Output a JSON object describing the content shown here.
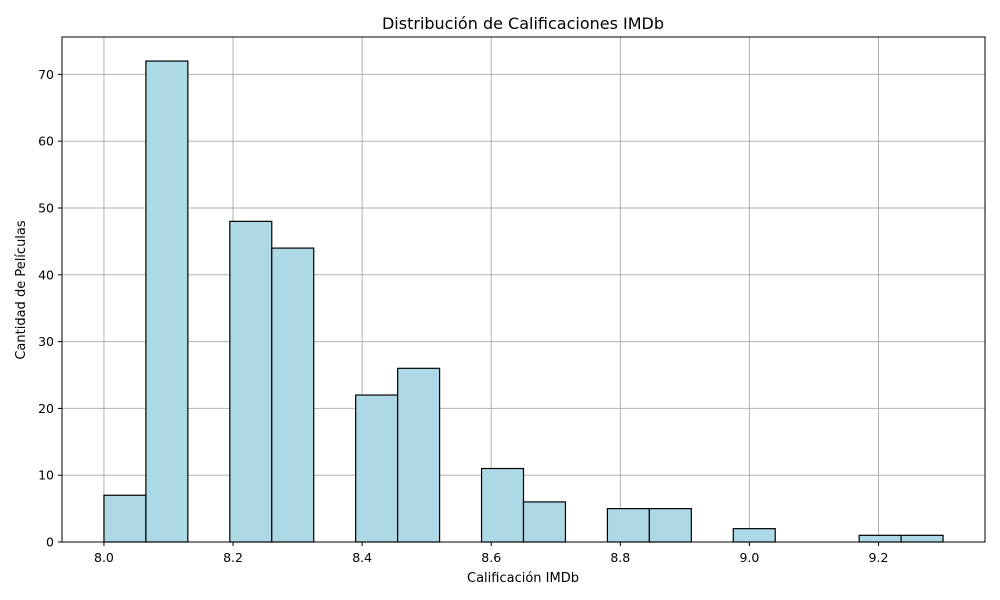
{
  "chart_data": {
    "type": "bar",
    "subtype": "histogram",
    "title": "Distribución de Calificaciones IMDb",
    "xlabel": "Calificación IMDb",
    "ylabel": "Cantidad de Películas",
    "bin_start": 8.0,
    "bin_end": 9.3,
    "bins": 20,
    "values": [
      7,
      72,
      0,
      48,
      44,
      0,
      22,
      26,
      0,
      11,
      6,
      0,
      5,
      5,
      0,
      2,
      0,
      0,
      1,
      1
    ],
    "xlim": [
      7.935,
      9.365
    ],
    "ylim": [
      0,
      75.6
    ],
    "xticks": [
      8.0,
      8.2,
      8.4,
      8.6,
      8.8,
      9.0,
      9.2
    ],
    "xtick_labels": [
      "8.0",
      "8.2",
      "8.4",
      "8.6",
      "8.8",
      "9.0",
      "9.2"
    ],
    "yticks": [
      0,
      10,
      20,
      30,
      40,
      50,
      60,
      70
    ],
    "ytick_labels": [
      "0",
      "10",
      "20",
      "30",
      "40",
      "50",
      "60",
      "70"
    ],
    "grid": true,
    "bar_color": "#add8e6",
    "edge_color": "#000000",
    "grid_color": "#b0b0b0"
  }
}
